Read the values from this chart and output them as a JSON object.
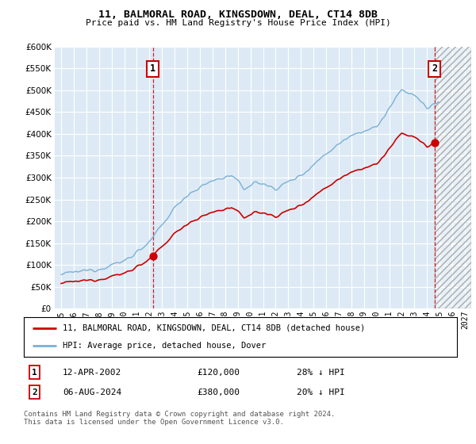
{
  "title": "11, BALMORAL ROAD, KINGSDOWN, DEAL, CT14 8DB",
  "subtitle": "Price paid vs. HM Land Registry's House Price Index (HPI)",
  "legend_line1": "11, BALMORAL ROAD, KINGSDOWN, DEAL, CT14 8DB (detached house)",
  "legend_line2": "HPI: Average price, detached house, Dover",
  "annotation1_date": "12-APR-2002",
  "annotation1_price": "£120,000",
  "annotation1_hpi": "28% ↓ HPI",
  "annotation2_date": "06-AUG-2024",
  "annotation2_price": "£380,000",
  "annotation2_hpi": "20% ↓ HPI",
  "footer": "Contains HM Land Registry data © Crown copyright and database right 2024.\nThis data is licensed under the Open Government Licence v3.0.",
  "hpi_color": "#7ab0d4",
  "price_color": "#cc0000",
  "annotation_color": "#cc0000",
  "plot_bg": "#ddeaf5",
  "ylim": [
    0,
    600000
  ],
  "yticks": [
    0,
    50000,
    100000,
    150000,
    200000,
    250000,
    300000,
    350000,
    400000,
    450000,
    500000,
    550000,
    600000
  ],
  "x_start_year": 1995,
  "x_end_year": 2027,
  "sale1_year": 2002.28,
  "sale1_price": 120000,
  "sale2_year": 2024.58,
  "sale2_price": 380000
}
